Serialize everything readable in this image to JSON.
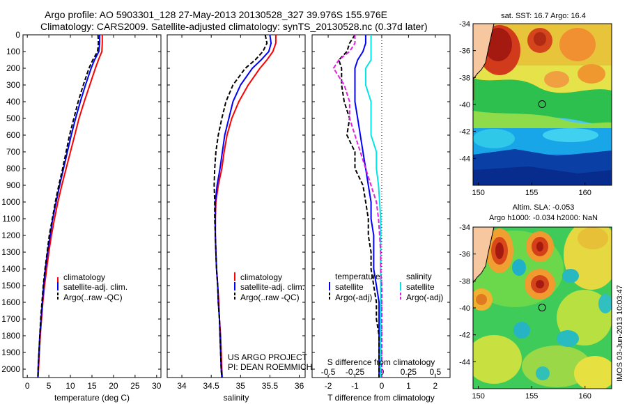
{
  "header": {
    "line1": "Argo profile: AO 5903301_128 27-May-2013 20130528_327 39.976S 155.976E",
    "line2": "Climatology: CARS2009. Satellite-adjusted climatology: synTS_20130528.nc (0.37d later)"
  },
  "depth_ticks": [
    "0",
    "100",
    "200",
    "300",
    "400",
    "500",
    "600",
    "700",
    "800",
    "900",
    "1000",
    "1100",
    "1200",
    "1300",
    "1400",
    "1500",
    "1600",
    "1700",
    "1800",
    "1900",
    "2000"
  ],
  "colors": {
    "climatology": "#ff0000",
    "satellite": "#0000ff",
    "argo": "#000000",
    "sat_salinity": "#00e5e5",
    "argo_salinity": "#e020e0"
  },
  "legend": {
    "climatology": "climatology",
    "satellite_adj": "satellite-adj. clim.",
    "argo_raw": "Argo(..raw -QC)",
    "temperature": "temperature",
    "salinity": "salinity",
    "satellite": "satellite",
    "argo_adj": "Argo(-adj)"
  },
  "annotation": {
    "project": "US ARGO PROJECT",
    "pi": "PI: DEAN ROEMMICH"
  },
  "map_top": {
    "title": "sat. SST: 16.7 Argo: 16.4",
    "lat_ticks": [
      "-34",
      "-36",
      "-38",
      "-40",
      "-42",
      "-44"
    ],
    "lon_ticks": [
      "150",
      "155",
      "160"
    ]
  },
  "map_bottom": {
    "title1": "Altim. SLA: -0.053",
    "title2": "Argo h1000: -0.034 h2000: NaN",
    "lat_ticks": [
      "-34",
      "-36",
      "-38",
      "-40",
      "-42",
      "-44"
    ],
    "lon_ticks": [
      "150",
      "155",
      "160"
    ]
  },
  "footer": {
    "stamp": "IMOS 03-Jun-2013 10:03:47"
  },
  "chart_data": [
    {
      "type": "line",
      "xlabel": "temperature (deg C)",
      "xlim": [
        -1,
        31
      ],
      "ylim": [
        2050,
        0
      ],
      "xtick_labels": [
        "0",
        "5",
        "10",
        "15",
        "20",
        "25",
        "30"
      ],
      "depth": [
        0,
        50,
        100,
        150,
        200,
        300,
        400,
        500,
        600,
        700,
        800,
        900,
        1000,
        1100,
        1200,
        1300,
        1400,
        1500,
        1600,
        1700,
        1800,
        1900,
        2000,
        2050
      ],
      "series": [
        {
          "name": "climatology",
          "values": [
            17.4,
            17.4,
            17.3,
            16.5,
            15.8,
            14.5,
            13.2,
            12.0,
            11.0,
            10.0,
            9.0,
            8.0,
            7.1,
            6.3,
            5.6,
            5.0,
            4.5,
            4.0,
            3.6,
            3.3,
            3.0,
            2.8,
            2.6,
            2.5
          ]
        },
        {
          "name": "satellite-adj. clim.",
          "values": [
            16.8,
            16.8,
            16.6,
            15.6,
            14.8,
            13.5,
            12.3,
            11.2,
            10.2,
            9.3,
            8.4,
            7.5,
            6.7,
            5.9,
            5.3,
            4.7,
            4.2,
            3.8,
            3.5,
            3.2,
            2.9,
            2.7,
            2.5,
            2.45
          ]
        },
        {
          "name": "Argo(..raw -QC)",
          "values": [
            16.4,
            16.5,
            16.3,
            15.2,
            14.3,
            13.0,
            11.8,
            10.8,
            9.8,
            9.0,
            8.2,
            7.3,
            6.5,
            5.8,
            5.1,
            4.6,
            4.1,
            3.7,
            3.4,
            3.1,
            2.9,
            2.7,
            2.5,
            2.45
          ]
        }
      ]
    },
    {
      "type": "line",
      "xlabel": "salinity",
      "xlim": [
        33.75,
        36.1
      ],
      "ylim": [
        2050,
        0
      ],
      "xtick_labels": [
        "34",
        "34.5",
        "35",
        "35.5",
        "36"
      ],
      "depth": [
        0,
        50,
        100,
        150,
        200,
        300,
        400,
        500,
        600,
        700,
        800,
        900,
        1000,
        1100,
        1200,
        1300,
        1400,
        1500,
        1600,
        1700,
        1800,
        1900,
        2000,
        2050
      ],
      "series": [
        {
          "name": "climatology",
          "values": [
            35.6,
            35.6,
            35.55,
            35.45,
            35.33,
            35.13,
            34.97,
            34.85,
            34.77,
            34.72,
            34.68,
            34.62,
            34.58,
            34.57,
            34.57,
            34.58,
            34.59,
            34.61,
            34.63,
            34.64,
            34.66,
            34.67,
            34.68,
            34.69
          ]
        },
        {
          "name": "satellite-adj. clim.",
          "values": [
            35.5,
            35.52,
            35.48,
            35.35,
            35.2,
            35.0,
            34.87,
            34.8,
            34.73,
            34.69,
            34.65,
            34.6,
            34.57,
            34.57,
            34.57,
            34.58,
            34.59,
            34.61,
            34.62,
            34.64,
            34.65,
            34.66,
            34.67,
            34.68
          ]
        },
        {
          "name": "Argo(..raw -QC)",
          "values": [
            35.42,
            35.45,
            35.38,
            35.25,
            35.08,
            34.87,
            34.75,
            34.68,
            34.62,
            34.58,
            34.56,
            34.55,
            34.56,
            34.56,
            34.57,
            34.58,
            34.59,
            34.61,
            34.62,
            34.64,
            34.65,
            34.66,
            34.67,
            34.68
          ]
        }
      ]
    },
    {
      "type": "line",
      "xlabel": "T difference from climatology",
      "xlabel_top": "S difference from climatology",
      "xlim": [
        -2.6,
        2.55
      ],
      "ylim": [
        2050,
        0
      ],
      "xtick_labels": [
        "-2",
        "-1",
        "0",
        "1",
        "2"
      ],
      "xtick_labels_top": [
        "-0.5",
        "-0.25",
        "0",
        "0.25",
        "0.5"
      ],
      "depth": [
        0,
        50,
        100,
        150,
        200,
        300,
        400,
        500,
        600,
        700,
        800,
        900,
        1000,
        1100,
        1200,
        1300,
        1400,
        1500,
        1600,
        1700,
        1800,
        1900,
        2000,
        2050
      ],
      "series": [
        {
          "name": "satellite (temperature)",
          "values": [
            -0.6,
            -0.6,
            -0.7,
            -0.9,
            -1.0,
            -1.0,
            -1.0,
            -0.9,
            -0.8,
            -0.7,
            -0.6,
            -0.5,
            -0.4,
            -0.4,
            -0.3,
            -0.3,
            -0.3,
            -0.2,
            -0.1,
            -0.1,
            -0.1,
            -0.1,
            -0.1,
            -0.1
          ]
        },
        {
          "name": "Argo(-adj) (temperature)",
          "values": [
            -1.0,
            -1.2,
            -1.3,
            -1.6,
            -1.5,
            -1.5,
            -1.4,
            -1.2,
            -1.3,
            -1.0,
            -1.0,
            -0.7,
            -0.6,
            -0.5,
            -0.5,
            -0.4,
            -0.4,
            -0.3,
            -0.2,
            -0.2,
            -0.1,
            -0.1,
            -0.1,
            -0.1
          ]
        },
        {
          "name": "satellite (salinity)",
          "values": [
            -0.1,
            -0.1,
            -0.1,
            -0.1,
            -0.15,
            -0.15,
            -0.1,
            -0.1,
            -0.1,
            -0.05,
            -0.05,
            -0.03,
            -0.02,
            -0.01,
            -0.01,
            -0.01,
            -0.01,
            -0.01,
            -0.01,
            -0.01,
            -0.01,
            -0.01,
            -0.01,
            -0.01
          ]
        },
        {
          "name": "Argo(-adj) (salinity)",
          "values": [
            -0.25,
            -0.25,
            -0.3,
            -0.4,
            -0.45,
            -0.35,
            -0.3,
            -0.3,
            -0.25,
            -0.2,
            -0.15,
            -0.1,
            -0.05,
            -0.03,
            -0.02,
            -0.01,
            -0.01,
            0.0,
            0.0,
            0.0,
            0.0,
            0.0,
            0.0,
            0.0
          ]
        }
      ]
    },
    {
      "type": "heatmap",
      "title": "sat. SST: 16.7 Argo: 16.4",
      "xlim": [
        149.5,
        162.5
      ],
      "ylim": [
        -46,
        -34
      ],
      "marker": {
        "lon": 155.976,
        "lat": -39.976
      }
    },
    {
      "type": "heatmap",
      "title": "Altim. SLA: -0.053",
      "xlim": [
        149.5,
        162.5
      ],
      "ylim": [
        -46,
        -34
      ],
      "marker": {
        "lon": 155.976,
        "lat": -39.976
      }
    }
  ]
}
